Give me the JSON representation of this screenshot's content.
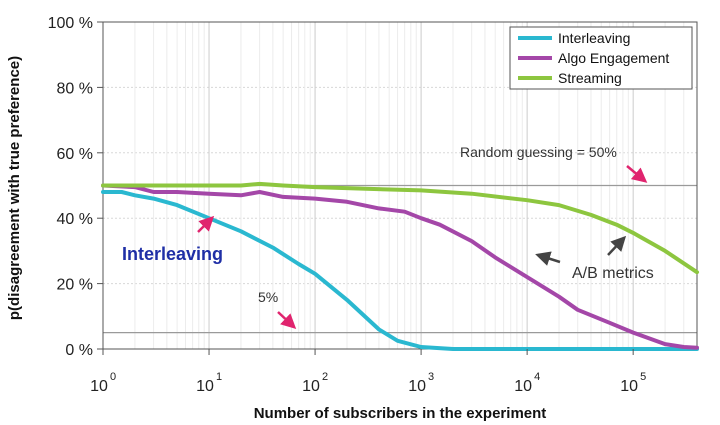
{
  "chart_data": {
    "type": "line",
    "title": "",
    "xlabel": "Number of subscribers in the experiment",
    "ylabel": "p(disagreement with true preference)",
    "x_scale": "log10",
    "xlim": [
      1,
      400000
    ],
    "ylim": [
      0,
      100
    ],
    "x_ticks": [
      {
        "value": 1,
        "base": "10",
        "exp": "0"
      },
      {
        "value": 10,
        "base": "10",
        "exp": "1"
      },
      {
        "value": 100,
        "base": "10",
        "exp": "2"
      },
      {
        "value": 1000,
        "base": "10",
        "exp": "3"
      },
      {
        "value": 10000,
        "base": "10",
        "exp": "4"
      },
      {
        "value": 100000,
        "base": "10",
        "exp": "5"
      }
    ],
    "y_ticks": [
      {
        "value": 0,
        "label": "0 %"
      },
      {
        "value": 20,
        "label": "20 %"
      },
      {
        "value": 40,
        "label": "40 %"
      },
      {
        "value": 60,
        "label": "60 %"
      },
      {
        "value": 80,
        "label": "80 %"
      },
      {
        "value": 100,
        "label": "100 %"
      }
    ],
    "reference_lines": [
      {
        "y": 50,
        "label": "Random guessing = 50%"
      },
      {
        "y": 5,
        "label": "5%"
      }
    ],
    "series": [
      {
        "name": "Interleaving",
        "color": "#2ab8d0",
        "points": [
          [
            1,
            48
          ],
          [
            1.5,
            48
          ],
          [
            2,
            47
          ],
          [
            3,
            46
          ],
          [
            5,
            44
          ],
          [
            10,
            40
          ],
          [
            20,
            36
          ],
          [
            40,
            31
          ],
          [
            70,
            26
          ],
          [
            100,
            23
          ],
          [
            200,
            15
          ],
          [
            400,
            6
          ],
          [
            600,
            2.5
          ],
          [
            1000,
            0.6
          ],
          [
            2000,
            0
          ],
          [
            400000,
            0
          ]
        ]
      },
      {
        "name": "Algo Engagement",
        "color": "#a447a8",
        "points": [
          [
            1,
            50
          ],
          [
            2,
            49.5
          ],
          [
            3,
            48
          ],
          [
            5,
            48
          ],
          [
            10,
            47.5
          ],
          [
            20,
            47
          ],
          [
            30,
            48
          ],
          [
            50,
            46.5
          ],
          [
            100,
            46
          ],
          [
            200,
            45
          ],
          [
            400,
            43
          ],
          [
            700,
            42
          ],
          [
            1000,
            40
          ],
          [
            1500,
            38
          ],
          [
            3000,
            33
          ],
          [
            5000,
            28
          ],
          [
            10000,
            22
          ],
          [
            20000,
            16
          ],
          [
            30000,
            12
          ],
          [
            60000,
            8
          ],
          [
            100000,
            5
          ],
          [
            200000,
            1.5
          ],
          [
            300000,
            0.6
          ],
          [
            400000,
            0.4
          ]
        ]
      },
      {
        "name": "Streaming",
        "color": "#8dc63f",
        "points": [
          [
            1,
            50
          ],
          [
            10,
            50
          ],
          [
            20,
            50
          ],
          [
            30,
            50.5
          ],
          [
            50,
            50
          ],
          [
            100,
            49.5
          ],
          [
            300,
            49
          ],
          [
            1000,
            48.5
          ],
          [
            3000,
            47.5
          ],
          [
            10000,
            45.5
          ],
          [
            20000,
            44
          ],
          [
            40000,
            41
          ],
          [
            70000,
            38
          ],
          [
            100000,
            35.5
          ],
          [
            200000,
            30
          ],
          [
            400000,
            23.5
          ]
        ]
      }
    ],
    "annotations": [
      {
        "text": "Interleaving",
        "style": "series-label"
      },
      {
        "text": "A/B metrics",
        "style": "callout"
      }
    ],
    "legend": {
      "position": "top-right",
      "entries": [
        "Interleaving",
        "Algo Engagement",
        "Streaming"
      ]
    }
  },
  "colors": {
    "arrow_pink": "#e0246e",
    "arrow_gray": "#444444",
    "ref_line": "#9a9a9a",
    "grid": "#d8d8d8",
    "frame": "#555555"
  }
}
